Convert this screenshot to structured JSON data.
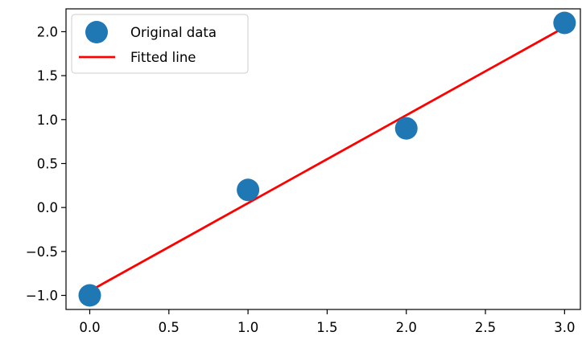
{
  "chart_data": {
    "type": "scatter",
    "title": "",
    "xlabel": "",
    "ylabel": "",
    "xlim": [
      -0.15,
      3.1
    ],
    "ylim": [
      -1.16,
      2.26
    ],
    "x_ticks": [
      {
        "value": 0.0,
        "label": "0.0"
      },
      {
        "value": 0.5,
        "label": "0.5"
      },
      {
        "value": 1.0,
        "label": "1.0"
      },
      {
        "value": 1.5,
        "label": "1.5"
      },
      {
        "value": 2.0,
        "label": "2.0"
      },
      {
        "value": 2.5,
        "label": "2.5"
      },
      {
        "value": 3.0,
        "label": "3.0"
      }
    ],
    "y_ticks": [
      {
        "value": -1.0,
        "label": "−1.0"
      },
      {
        "value": -0.5,
        "label": "−0.5"
      },
      {
        "value": 0.0,
        "label": "0.0"
      },
      {
        "value": 0.5,
        "label": "0.5"
      },
      {
        "value": 1.0,
        "label": "1.0"
      },
      {
        "value": 1.5,
        "label": "1.5"
      },
      {
        "value": 2.0,
        "label": "2.0"
      }
    ],
    "grid": false,
    "legend_position": "top-left",
    "series": [
      {
        "name": "Original data",
        "kind": "scatter",
        "color": "#1f77b4",
        "x": [
          0,
          1,
          2,
          3
        ],
        "y": [
          -1.0,
          0.2,
          0.9,
          2.1
        ]
      },
      {
        "name": "Fitted line",
        "kind": "line",
        "color": "#ff0000",
        "x": [
          0,
          1,
          2,
          3
        ],
        "y": [
          -0.95,
          0.05,
          1.05,
          2.05
        ]
      }
    ]
  }
}
